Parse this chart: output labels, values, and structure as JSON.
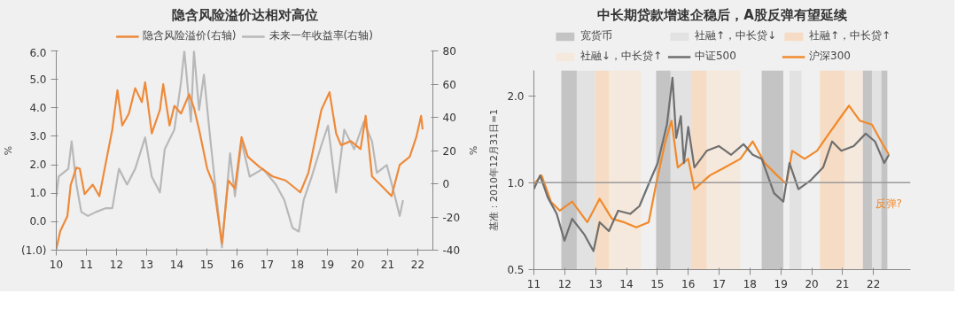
{
  "chart_data": [
    {
      "type": "line",
      "title": "隐含风险溢价达相对高位",
      "ylabel": "%",
      "y2label": "%",
      "legend": "top",
      "xlim": [
        10,
        22.5
      ],
      "xticks": [
        10,
        11,
        12,
        13,
        14,
        15,
        16,
        17,
        18,
        19,
        20,
        21,
        22
      ],
      "ylim": [
        -1,
        6
      ],
      "yticks": [
        {
          "value": -1,
          "label": "(1.0)"
        },
        {
          "value": 0,
          "label": "0.0"
        },
        {
          "value": 1,
          "label": "1.0"
        },
        {
          "value": 2,
          "label": "2.0"
        },
        {
          "value": 3,
          "label": "3.0"
        },
        {
          "value": 4,
          "label": "4.0"
        },
        {
          "value": 5,
          "label": "5.0"
        },
        {
          "value": 6,
          "label": "6.0"
        }
      ],
      "y2lim": [
        -40,
        80
      ],
      "y2ticks": [
        -40,
        -20,
        0,
        20,
        40,
        60,
        80
      ],
      "series": [
        {
          "name": "隐含风险溢价(右轴)",
          "color": "#ee8a3a",
          "x": [
            10.0,
            10.13,
            10.37,
            10.48,
            10.67,
            10.78,
            10.94,
            11.21,
            11.43,
            11.65,
            11.86,
            12.03,
            12.19,
            12.41,
            12.62,
            12.84,
            12.95,
            13.17,
            13.44,
            13.55,
            13.76,
            13.92,
            14.14,
            14.41,
            14.57,
            14.74,
            15.01,
            15.22,
            15.5,
            15.71,
            15.93,
            16.15,
            16.36,
            16.74,
            17.18,
            17.61,
            17.94,
            18.1,
            18.37,
            18.8,
            19.07,
            19.29,
            19.45,
            19.78,
            20.1,
            20.27,
            20.48,
            20.75,
            21.13,
            21.4,
            21.73,
            21.95,
            22.11,
            22.16
          ],
          "values": [
            -0.97,
            -0.34,
            0.2,
            1.3,
            1.9,
            1.86,
            0.97,
            1.3,
            0.9,
            2.1,
            3.24,
            4.62,
            3.38,
            3.8,
            4.69,
            4.2,
            4.9,
            3.1,
            3.93,
            4.83,
            3.38,
            4.07,
            3.8,
            4.48,
            4.0,
            3.24,
            1.86,
            1.31,
            -0.76,
            1.45,
            1.17,
            2.97,
            2.28,
            1.93,
            1.59,
            1.45,
            1.17,
            1.03,
            1.72,
            3.93,
            4.55,
            3.1,
            2.69,
            2.83,
            2.55,
            3.72,
            1.59,
            1.31,
            0.9,
            2.0,
            2.28,
            2.97,
            3.72,
            3.24
          ]
        },
        {
          "name": "未来一年收益率(右轴)",
          "color": "#b8b8b8",
          "axis": "y2",
          "x": [
            10.0,
            10.08,
            10.4,
            10.51,
            10.67,
            10.83,
            11.05,
            11.32,
            11.65,
            11.86,
            12.08,
            12.35,
            12.62,
            12.95,
            13.17,
            13.44,
            13.6,
            13.92,
            14.14,
            14.25,
            14.47,
            14.57,
            14.74,
            14.9,
            15.12,
            15.5,
            15.77,
            15.93,
            16.15,
            16.42,
            16.86,
            17.29,
            17.57,
            17.84,
            18.05,
            18.21,
            18.48,
            18.8,
            19.02,
            19.29,
            19.56,
            19.89,
            20.21,
            20.48,
            20.64,
            20.97,
            21.24,
            21.4,
            21.51
          ],
          "values": [
            -7.6,
            4.3,
            9,
            25.5,
            -0.5,
            -17,
            -19.4,
            -17,
            -14.7,
            -14.7,
            9,
            -0.5,
            9,
            27.9,
            4.3,
            -5.2,
            20.8,
            32.6,
            61,
            80,
            37.4,
            80,
            44.4,
            65.7,
            25.5,
            -38.3,
            18.4,
            -7.6,
            25.5,
            4.3,
            9,
            -0.5,
            -9.9,
            -26.5,
            -28.8,
            -9.9,
            4.3,
            23.2,
            35,
            -5.2,
            32.6,
            20.8,
            37.4,
            25.5,
            6.6,
            11.3,
            -7.6,
            -19.4,
            -9.9
          ]
        }
      ]
    },
    {
      "type": "line",
      "title": "中长期贷款增速企稳后，A股反弹有望延续",
      "ylabel": "基准：2010年12月31日=1",
      "legend": "top",
      "log": "y",
      "xlim": [
        11,
        23.2
      ],
      "xticks": [
        11,
        12,
        13,
        14,
        15,
        16,
        17,
        18,
        19,
        20,
        21,
        22
      ],
      "ylim": [
        0.5,
        2.45
      ],
      "yticks": [
        {
          "value": 0.5,
          "label": "0.5"
        },
        {
          "value": 1.0,
          "label": "1.0"
        },
        {
          "value": 2.0,
          "label": "2.0"
        }
      ],
      "ref_lines": [
        {
          "axis": "y",
          "value": 1.0,
          "label": null,
          "color": "#9a9a9a"
        }
      ],
      "bands": [
        {
          "axis": "x",
          "from": 11.89,
          "to": 12.39,
          "label": "宽货币",
          "color": "#c4c4c4"
        },
        {
          "axis": "x",
          "from": 14.96,
          "to": 15.43,
          "color": "#c4c4c4"
        },
        {
          "axis": "x",
          "from": 18.38,
          "to": 19.08,
          "color": "#c4c4c4"
        },
        {
          "axis": "x",
          "from": 21.65,
          "to": 21.95,
          "color": "#c4c4c4"
        },
        {
          "axis": "x",
          "from": 22.25,
          "to": 22.45,
          "color": "#c4c4c4"
        },
        {
          "axis": "x",
          "from": 12.39,
          "to": 12.98,
          "label": "社融↑，中长贷↓",
          "color": "#e2e2e2"
        },
        {
          "axis": "x",
          "from": 15.43,
          "to": 16.1,
          "color": "#e2e2e2"
        },
        {
          "axis": "x",
          "from": 19.28,
          "to": 19.67,
          "color": "#e2e2e2"
        },
        {
          "axis": "x",
          "from": 21.95,
          "to": 22.25,
          "color": "#e2e2e2"
        },
        {
          "axis": "x",
          "from": 12.98,
          "to": 13.43,
          "label": "社融↑，中长贷↑",
          "color": "#f6dcc4"
        },
        {
          "axis": "x",
          "from": 16.1,
          "to": 16.6,
          "color": "#f6dcc4"
        },
        {
          "axis": "x",
          "from": 20.27,
          "to": 21.06,
          "color": "#f6dcc4"
        },
        {
          "axis": "x",
          "from": 13.43,
          "to": 14.47,
          "label": "社融↓，中长贷↑",
          "color": "#f5e8dc"
        },
        {
          "axis": "x",
          "from": 16.6,
          "to": 17.69,
          "color": "#f5e8dc"
        },
        {
          "axis": "x",
          "from": 21.06,
          "to": 21.65,
          "color": "#f5e8dc"
        }
      ],
      "annotations": [
        "反弹?"
      ],
      "series": [
        {
          "name": "中证500",
          "color": "#6f6f6f",
          "x": [
            11,
            11.2,
            11.45,
            11.74,
            11.99,
            12.24,
            12.64,
            12.93,
            13.13,
            13.43,
            13.73,
            14.12,
            14.42,
            14.72,
            15.01,
            15.31,
            15.49,
            15.61,
            15.76,
            15.86,
            16.0,
            16.2,
            16.6,
            16.99,
            17.39,
            17.79,
            18.09,
            18.38,
            18.78,
            19.08,
            19.28,
            19.57,
            19.97,
            20.37,
            20.66,
            20.96,
            21.36,
            21.75,
            22.05,
            22.35,
            22.5
          ],
          "values": [
            0.95,
            1.06,
            0.89,
            0.78,
            0.63,
            0.75,
            0.66,
            0.58,
            0.73,
            0.68,
            0.8,
            0.78,
            0.83,
            0.99,
            1.17,
            1.59,
            2.31,
            1.43,
            1.7,
            1.17,
            1.56,
            1.13,
            1.29,
            1.34,
            1.25,
            1.36,
            1.25,
            1.21,
            0.92,
            0.86,
            1.17,
            0.95,
            1.02,
            1.13,
            1.39,
            1.29,
            1.34,
            1.48,
            1.39,
            1.17,
            1.25
          ]
        },
        {
          "name": "沪深300",
          "color": "#f08a2c",
          "x": [
            11,
            11.25,
            11.55,
            11.84,
            12.24,
            12.73,
            13.13,
            13.53,
            13.92,
            14.32,
            14.72,
            14.96,
            15.26,
            15.46,
            15.66,
            16.0,
            16.2,
            16.7,
            17.19,
            17.69,
            18.09,
            18.48,
            18.88,
            19.18,
            19.37,
            19.77,
            20.17,
            20.56,
            20.96,
            21.21,
            21.56,
            21.95,
            22.25,
            22.5
          ],
          "values": [
            0.99,
            1.06,
            0.86,
            0.8,
            0.86,
            0.73,
            0.88,
            0.75,
            0.73,
            0.7,
            0.73,
            0.99,
            1.39,
            1.64,
            1.13,
            1.21,
            0.95,
            1.06,
            1.13,
            1.21,
            1.39,
            1.17,
            1.06,
            0.99,
            1.29,
            1.21,
            1.29,
            1.48,
            1.7,
            1.85,
            1.64,
            1.59,
            1.39,
            1.25
          ]
        }
      ]
    }
  ]
}
